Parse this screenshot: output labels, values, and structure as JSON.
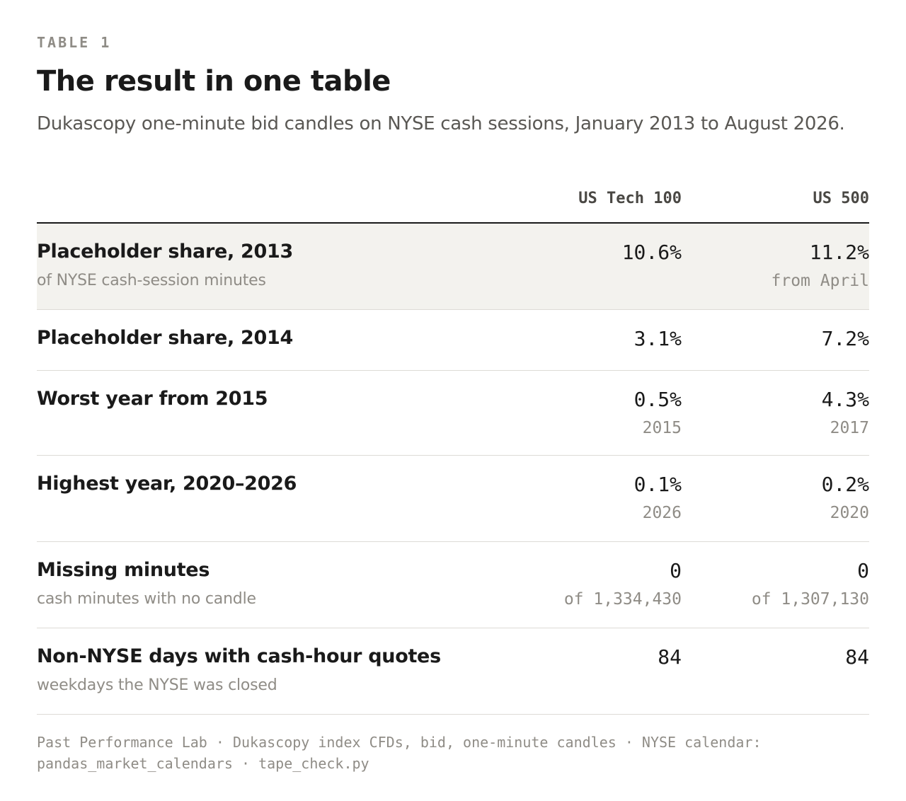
{
  "header": {
    "eyebrow": "TABLE 1",
    "title": "The result in one table",
    "subtitle": "Dukascopy one-minute bid candles on NYSE cash sessions, January 2013 to August 2026."
  },
  "table": {
    "columns": [
      "US Tech 100",
      "US 500"
    ],
    "rows": [
      {
        "label": "Placeholder share, 2013",
        "sublabel": "of NYSE cash-session minutes",
        "values": [
          "10.6%",
          "11.2%"
        ],
        "subvalues": [
          "",
          "from April"
        ]
      },
      {
        "label": "Placeholder share, 2014",
        "sublabel": "",
        "values": [
          "3.1%",
          "7.2%"
        ],
        "subvalues": [
          "",
          ""
        ]
      },
      {
        "label": "Worst year from 2015",
        "sublabel": "",
        "values": [
          "0.5%",
          "4.3%"
        ],
        "subvalues": [
          "2015",
          "2017"
        ]
      },
      {
        "label": "Highest year, 2020–2026",
        "sublabel": "",
        "values": [
          "0.1%",
          "0.2%"
        ],
        "subvalues": [
          "2026",
          "2020"
        ]
      },
      {
        "label": "Missing minutes",
        "sublabel": "cash minutes with no candle",
        "values": [
          "0",
          "0"
        ],
        "subvalues": [
          "of 1,334,430",
          "of 1,307,130"
        ]
      },
      {
        "label": "Non-NYSE days with cash-hour quotes",
        "sublabel": "weekdays the NYSE was closed",
        "values": [
          "84",
          "84"
        ],
        "subvalues": [
          "",
          ""
        ]
      }
    ]
  },
  "footer": {
    "text": "Past Performance Lab · Dukascopy index CFDs, bid, one-minute candles · NYSE calendar: pandas_market_calendars · tape_check.py"
  }
}
